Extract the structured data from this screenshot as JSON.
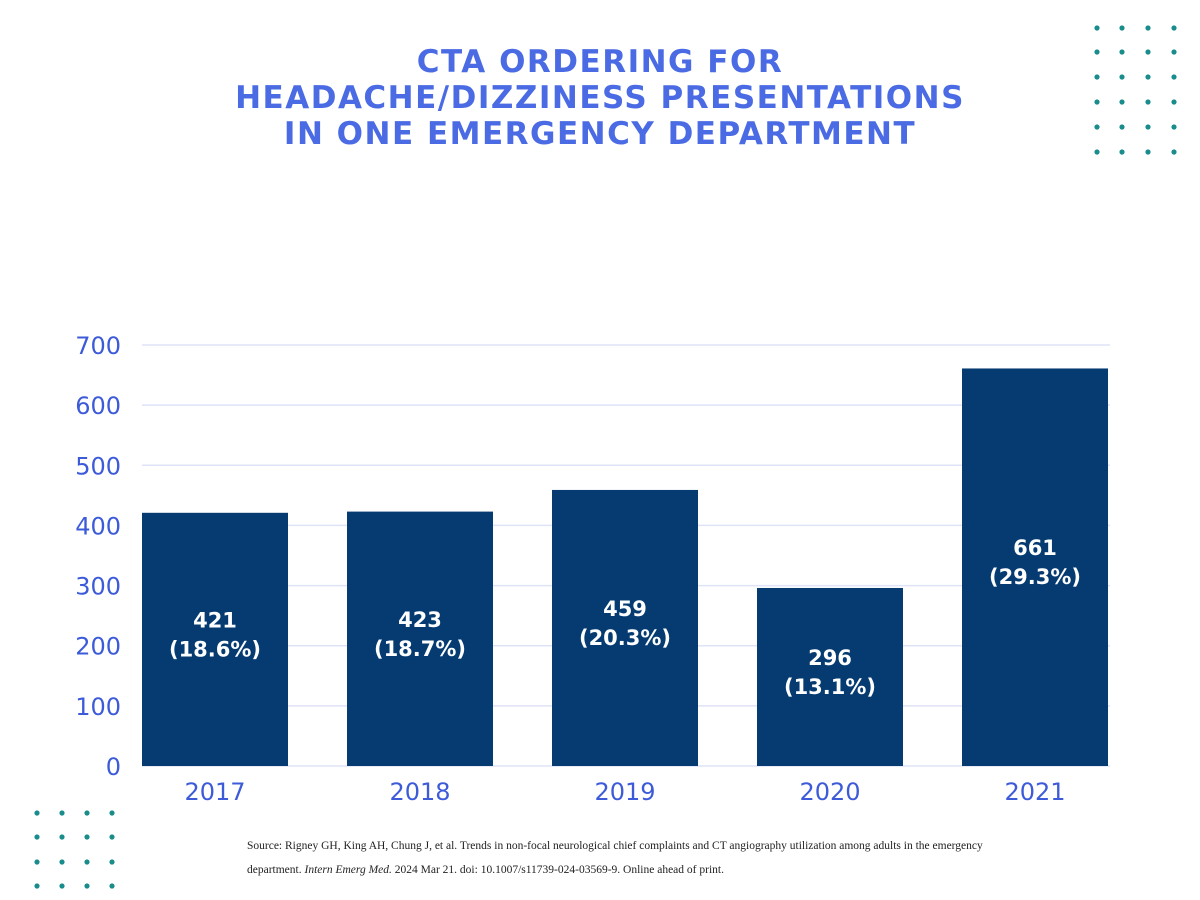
{
  "chart_data": {
    "type": "bar",
    "title_lines": [
      "CTA ORDERING FOR",
      "HEADACHE/DIZZINESS PRESENTATIONS",
      "IN ONE EMERGENCY DEPARTMENT"
    ],
    "categories": [
      "2017",
      "2018",
      "2019",
      "2020",
      "2021"
    ],
    "values": [
      421,
      423,
      459,
      296,
      661
    ],
    "data_labels": [
      [
        "421",
        "(18.6%)"
      ],
      [
        "423",
        "(18.7%)"
      ],
      [
        "459",
        "(20.3%)"
      ],
      [
        "296",
        "(13.1%)"
      ],
      [
        "661",
        "(29.3%)"
      ]
    ],
    "xlabel": "",
    "ylabel": "",
    "ylim": [
      0,
      700
    ],
    "yticks": [
      0,
      100,
      200,
      300,
      400,
      500,
      600,
      700
    ],
    "grid": true,
    "colors": {
      "bar": "#063b72",
      "title": "#4a6be3",
      "ticks": "#3d5bd9",
      "grid": "#dfe3f7",
      "dots": "#1a8c8c"
    }
  },
  "source": {
    "prefix": "Source: Rigney GH, King AH, Chung J, et al. Trends in non-focal neurological chief complaints and CT angiography utilization among adults in the emergency department. ",
    "journal": "Intern Emerg Med.",
    "suffix": " 2024 Mar 21. doi: 10.1007/s11739-024-03569-9. Online ahead of print."
  }
}
